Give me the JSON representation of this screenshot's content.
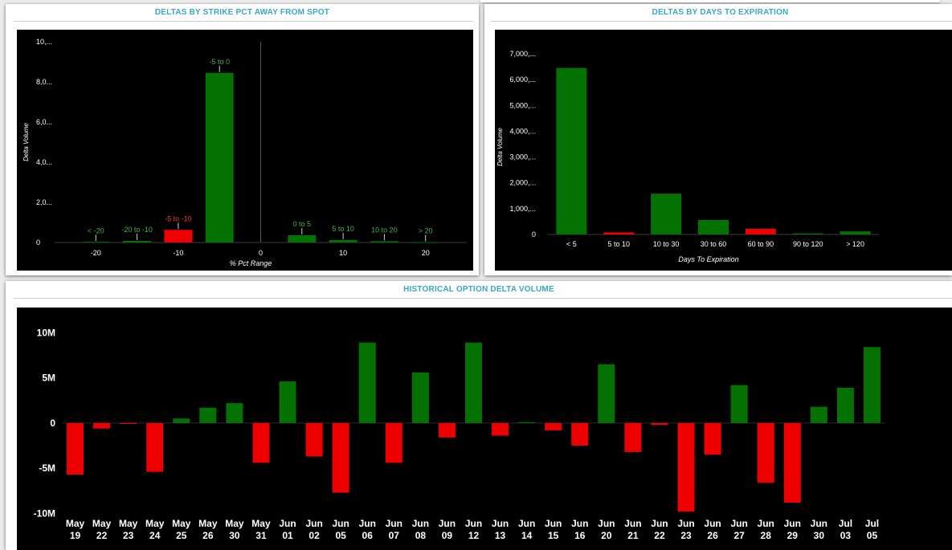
{
  "panels": {
    "strike": {
      "title": "DELTAS BY STRIKE PCT AWAY FROM SPOT"
    },
    "days": {
      "title": "DELTAS BY DAYS TO EXPIRATION"
    },
    "history": {
      "title": "HISTORICAL OPTION DELTA VOLUME"
    }
  },
  "colors": {
    "positive": "#037203",
    "negative": "#ee0000",
    "positive_label": "#4caf50",
    "negative_label": "#ff3b3b",
    "title": "#39a7c3"
  },
  "chart_data": [
    {
      "type": "bar",
      "title": "DELTAS BY STRIKE PCT AWAY FROM SPOT",
      "xlabel": "% Pct Range",
      "ylabel": "Delta Volume",
      "ylim": [
        0,
        10000
      ],
      "y_ticks": [
        0,
        2000,
        4000,
        6000,
        8000,
        10000
      ],
      "y_tick_labels": [
        "0",
        "2,0...",
        "4,0...",
        "6,0...",
        "8,0...",
        "10,..."
      ],
      "x_ticks": [
        -20,
        -10,
        0,
        10,
        20
      ],
      "x_tick_labels": [
        "-20",
        "-10",
        "0",
        "10",
        "20"
      ],
      "xlim": [
        -25,
        25
      ],
      "bars": [
        {
          "label": "< -20",
          "x": -20,
          "value": 30,
          "sign": "pos"
        },
        {
          "label": "-20 to -10",
          "x": -15,
          "value": 80,
          "sign": "pos"
        },
        {
          "label": "-5 to -10",
          "x": -10,
          "value": 630,
          "sign": "neg"
        },
        {
          "label": "-5 to 0",
          "x": -5,
          "value": 8450,
          "sign": "pos"
        },
        {
          "label": "0 to 5",
          "x": 5,
          "value": 360,
          "sign": "pos"
        },
        {
          "label": "5 to 10",
          "x": 10,
          "value": 120,
          "sign": "pos"
        },
        {
          "label": "10 to 20",
          "x": 15,
          "value": 60,
          "sign": "pos"
        },
        {
          "label": "> 20",
          "x": 20,
          "value": 20,
          "sign": "pos"
        }
      ],
      "grid": false
    },
    {
      "type": "bar",
      "title": "DELTAS BY DAYS TO EXPIRATION",
      "xlabel": "Days To Expiration",
      "ylabel": "Delta Volume",
      "ylim": [
        0,
        7000
      ],
      "y_ticks": [
        0,
        1000,
        2000,
        3000,
        4000,
        5000,
        6000,
        7000
      ],
      "y_tick_labels": [
        "0",
        "1,000,...",
        "2,000,...",
        "3,000,...",
        "4,000,...",
        "5,000,...",
        "6,000,...",
        "7,000,..."
      ],
      "categories": [
        "< 5",
        "5 to 10",
        "10 to 30",
        "30 to 60",
        "60 to 90",
        "90 to 120",
        "> 120"
      ],
      "values": [
        6450,
        80,
        1580,
        560,
        220,
        40,
        120
      ],
      "signs": [
        "pos",
        "neg",
        "pos",
        "pos",
        "neg",
        "pos",
        "pos"
      ],
      "grid": false
    },
    {
      "type": "bar",
      "title": "HISTORICAL OPTION DELTA VOLUME",
      "xlabel": "",
      "ylabel": "",
      "ylim": [
        -11200000,
        11000000
      ],
      "y_ticks": [
        10000000,
        5000000,
        0,
        -5000000,
        -10000000
      ],
      "y_tick_labels": [
        "10M",
        "5M",
        "0",
        "-5M",
        "-10M"
      ],
      "categories": [
        [
          "May",
          "19"
        ],
        [
          "May",
          "22"
        ],
        [
          "May",
          "23"
        ],
        [
          "May",
          "24"
        ],
        [
          "May",
          "25"
        ],
        [
          "May",
          "26"
        ],
        [
          "May",
          "30"
        ],
        [
          "May",
          "31"
        ],
        [
          "Jun",
          "01"
        ],
        [
          "Jun",
          "02"
        ],
        [
          "Jun",
          "05"
        ],
        [
          "Jun",
          "06"
        ],
        [
          "Jun",
          "07"
        ],
        [
          "Jun",
          "08"
        ],
        [
          "Jun",
          "09"
        ],
        [
          "Jun",
          "12"
        ],
        [
          "Jun",
          "13"
        ],
        [
          "Jun",
          "14"
        ],
        [
          "Jun",
          "15"
        ],
        [
          "Jun",
          "16"
        ],
        [
          "Jun",
          "20"
        ],
        [
          "Jun",
          "21"
        ],
        [
          "Jun",
          "22"
        ],
        [
          "Jun",
          "23"
        ],
        [
          "Jun",
          "26"
        ],
        [
          "Jun",
          "27"
        ],
        [
          "Jun",
          "28"
        ],
        [
          "Jun",
          "29"
        ],
        [
          "Jun",
          "30"
        ],
        [
          "Jul",
          "03"
        ],
        [
          "Jul",
          "05"
        ]
      ],
      "values": [
        -5700000,
        -600000,
        -100000,
        -5400000,
        500000,
        1700000,
        2200000,
        -4400000,
        4600000,
        -3700000,
        -7700000,
        8900000,
        -4400000,
        5600000,
        -1600000,
        8900000,
        -1400000,
        100000,
        -800000,
        -2500000,
        6500000,
        -3200000,
        -200000,
        -9800000,
        -3500000,
        4200000,
        -6600000,
        -8800000,
        1800000,
        3900000,
        8400000
      ],
      "grid": false
    }
  ]
}
